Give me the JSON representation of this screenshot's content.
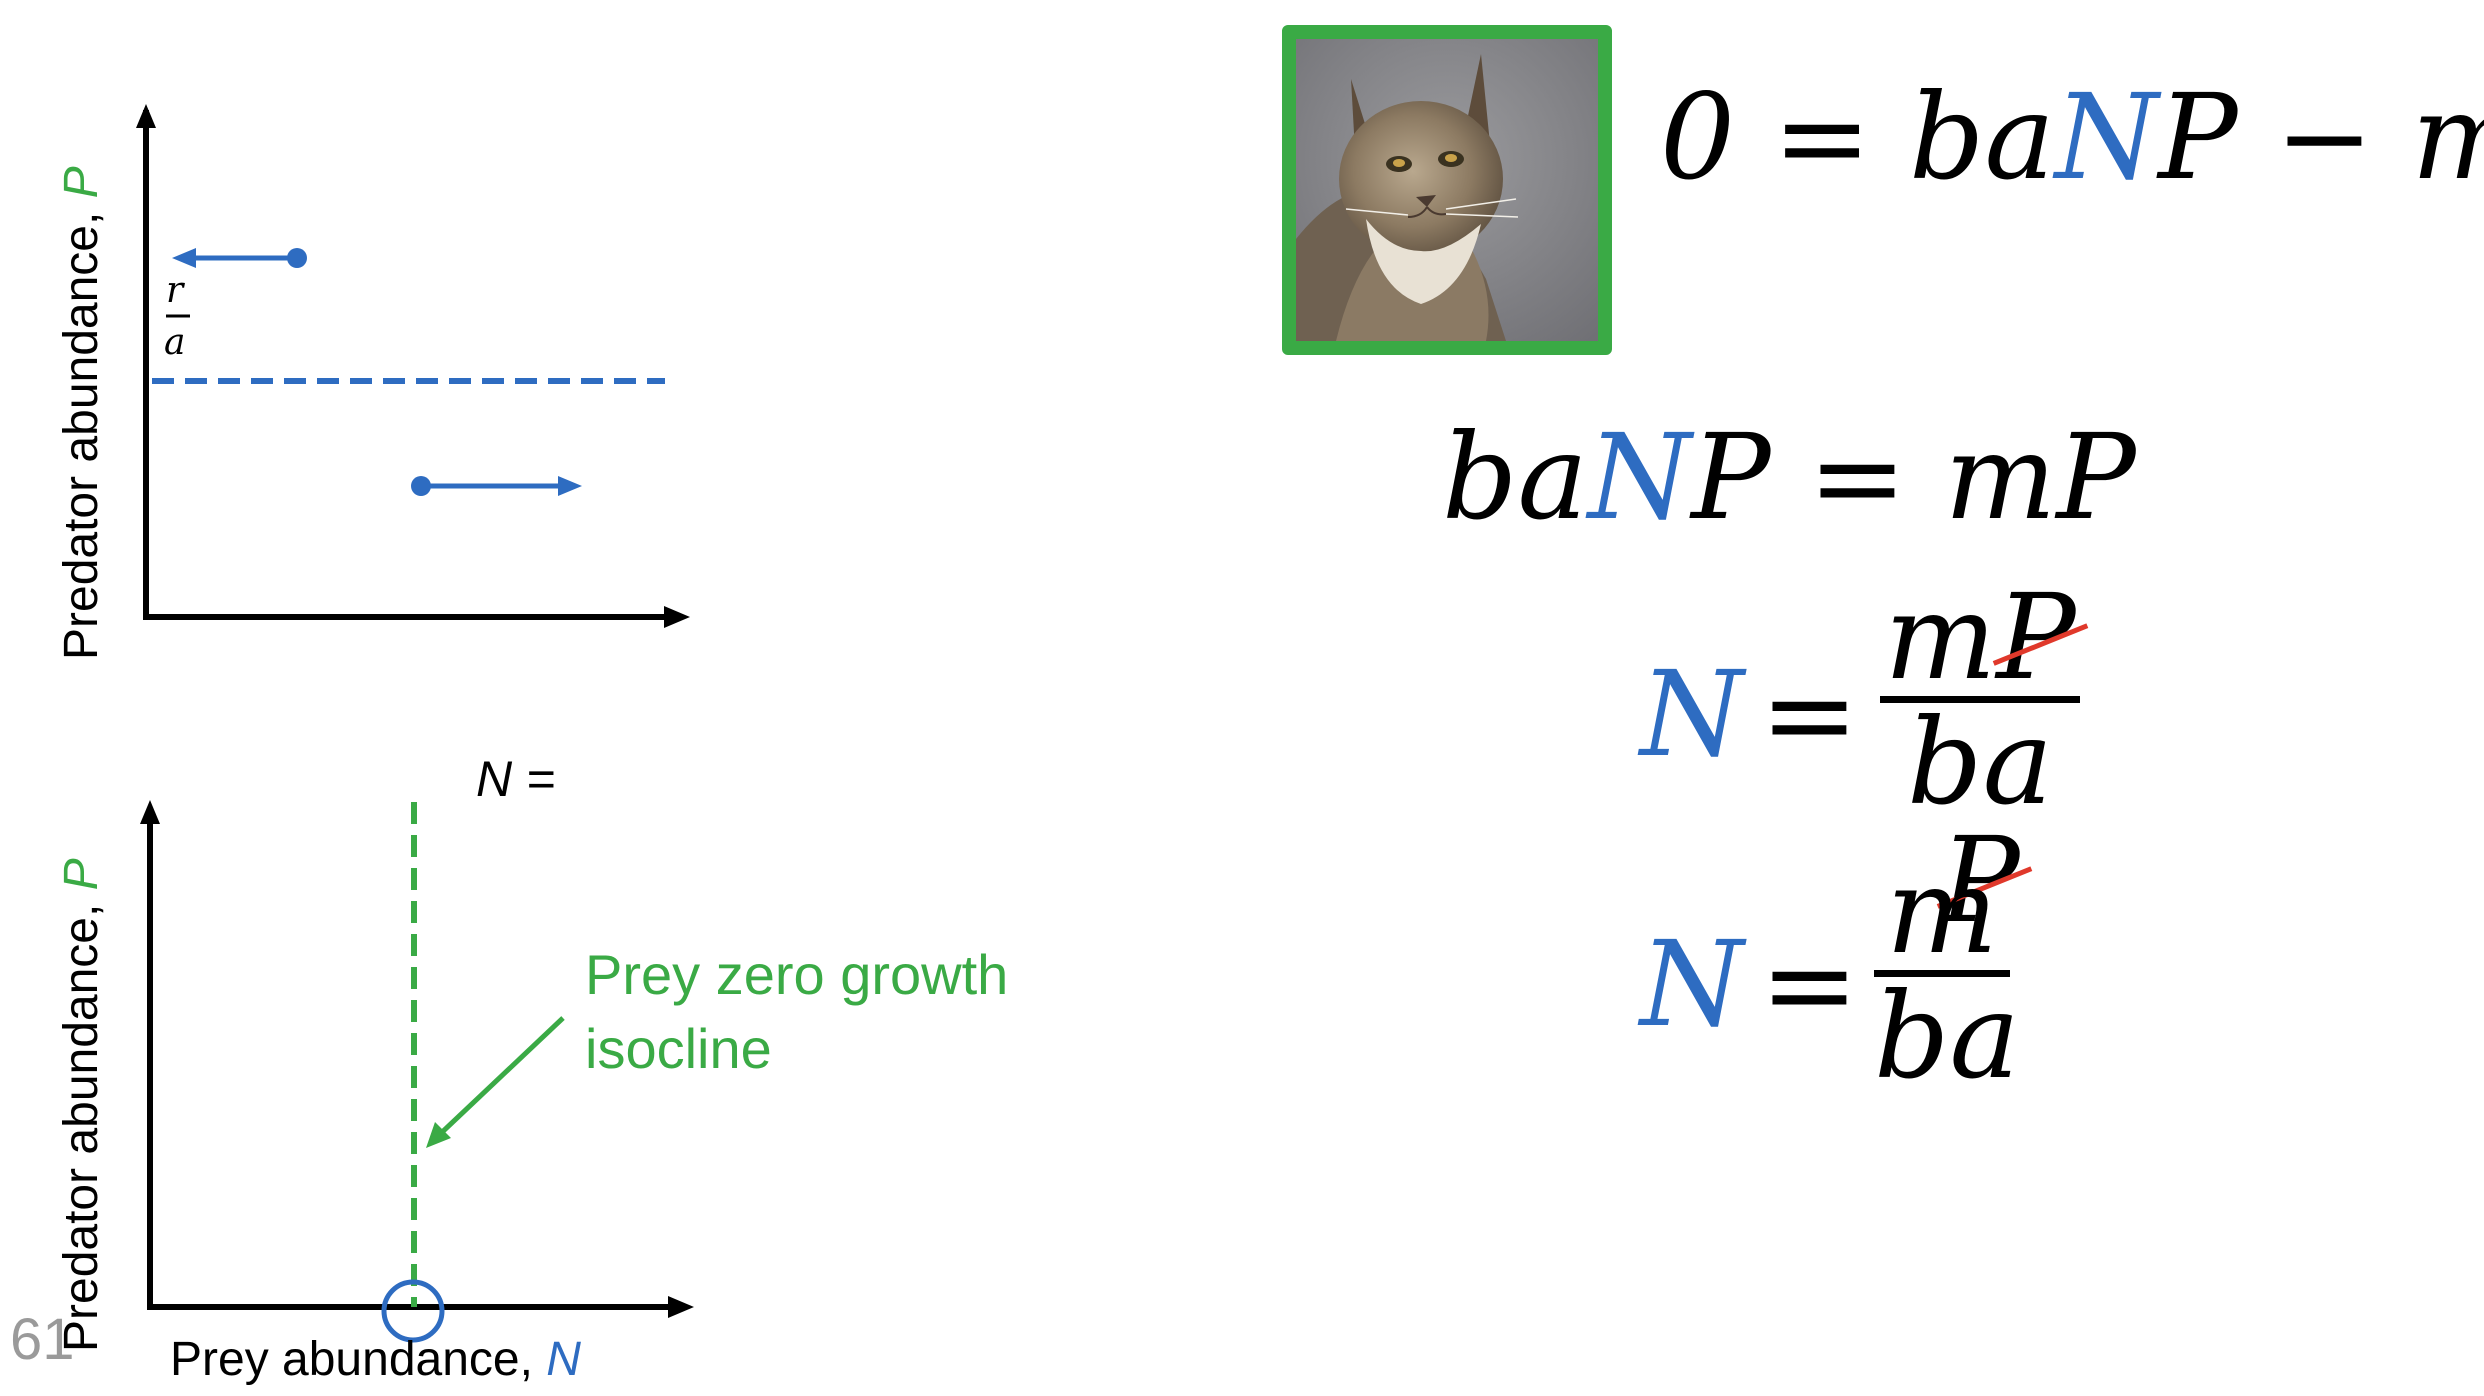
{
  "top_graph": {
    "y_label_text": "Predator abundance, ",
    "y_label_var": "P",
    "level_label_num": "r",
    "level_label_den": "a"
  },
  "bottom_graph": {
    "y_label_text": "Predator abundance, ",
    "y_label_var": "P",
    "x_label_text": "Prey abundance, ",
    "x_label_var": "N",
    "n_equals": "N =",
    "isocline_label_line1": "Prey zero growth",
    "isocline_label_line2": "isocline"
  },
  "slide_number": "61",
  "image": {
    "subject": "lynx photo",
    "frame_color": "#3aaa45"
  },
  "equations": {
    "eq1": {
      "lhs": "0 = ba",
      "var": "N",
      "rhs": "P − mP"
    },
    "eq2": {
      "lhs": "ba",
      "var": "N",
      "rhs": "P = mP"
    },
    "eq3": {
      "var": "N",
      "eq": "=",
      "num_a": "m",
      "num_b": "P",
      "den_a": "ba",
      "den_b": "P"
    },
    "eq4": {
      "var": "N",
      "eq": "=",
      "num": "m",
      "den": "ba"
    }
  },
  "colors": {
    "prey": "#2e6cc1",
    "predator": "#3aaa45",
    "strike": "#e0392b"
  }
}
